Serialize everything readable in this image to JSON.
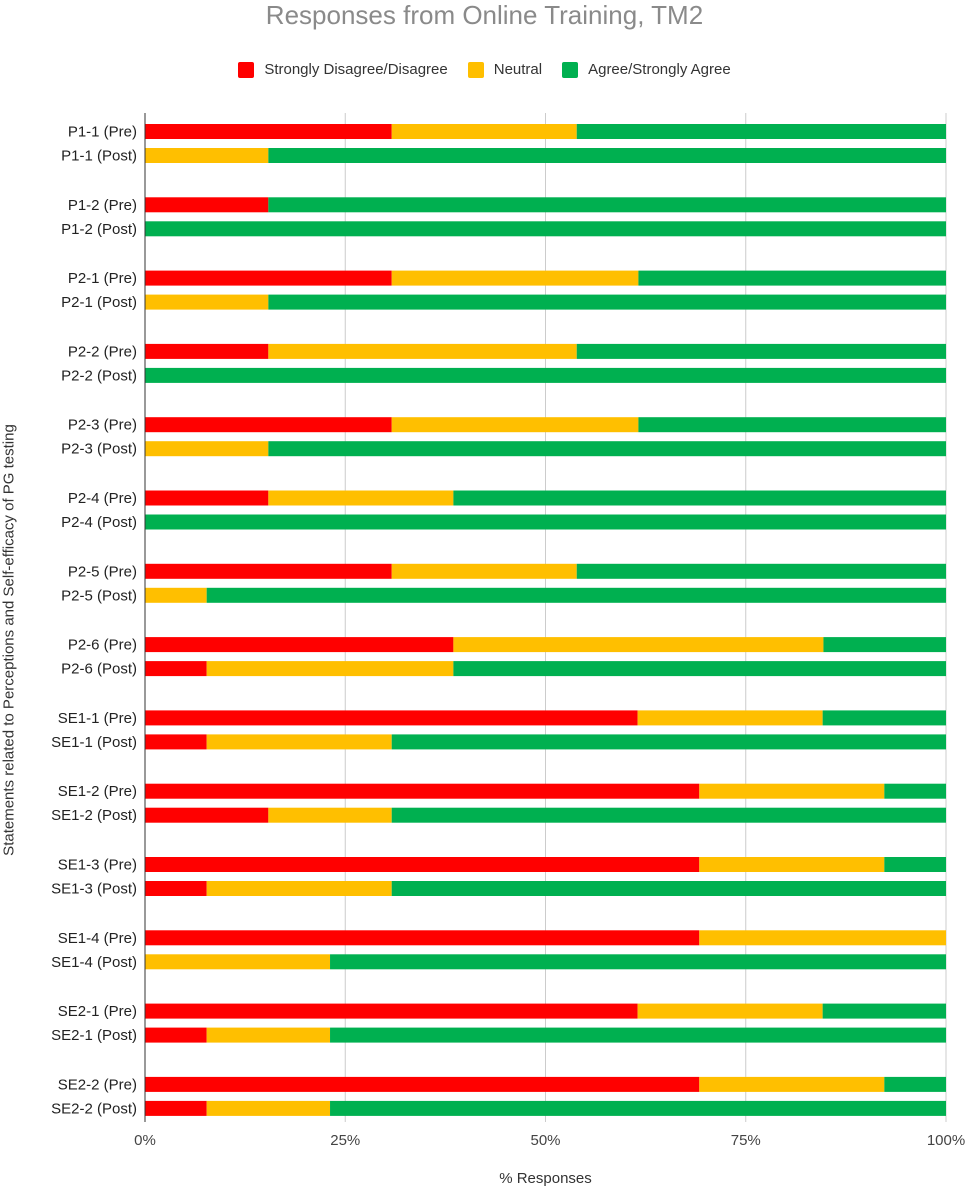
{
  "chart_data": {
    "type": "bar",
    "orientation": "horizontal",
    "stacked": true,
    "title": "Responses from Online Training, TM2",
    "xlabel": "% Responses",
    "ylabel": "Statements related to Perceptions and Self-efficacy of PG testing",
    "xlim": [
      0,
      100
    ],
    "x_ticks": [
      "0%",
      "25%",
      "50%",
      "75%",
      "100%"
    ],
    "x_tick_values": [
      0,
      25,
      50,
      75,
      100
    ],
    "grid": true,
    "legend_position": "top-center",
    "categories": [
      "P1-1 (Pre)",
      "P1-1 (Post)",
      "P1-2 (Pre)",
      "P1-2 (Post)",
      "P2-1 (Pre)",
      "P2-1 (Post)",
      "P2-2 (Pre)",
      "P2-2 (Post)",
      "P2-3 (Pre)",
      "P2-3 (Post)",
      "P2-4 (Pre)",
      "P2-4 (Post)",
      "P2-5 (Pre)",
      "P2-5 (Post)",
      "P2-6 (Pre)",
      "P2-6 (Post)",
      "SE1-1 (Pre)",
      "SE1-1 (Post)",
      "SE1-2 (Pre)",
      "SE1-2 (Post)",
      "SE1-3 (Pre)",
      "SE1-3 (Post)",
      "SE1-4 (Pre)",
      "SE1-4 (Post)",
      "SE2-1 (Pre)",
      "SE2-1 (Post)",
      "SE2-2 (Pre)",
      "SE2-2 (Post)"
    ],
    "series": [
      {
        "name": "Strongly Disagree/Disagree",
        "color": "#ff0000",
        "values": [
          30.8,
          0,
          15.4,
          0,
          30.8,
          0,
          15.4,
          0,
          30.8,
          0,
          15.4,
          0,
          30.8,
          0,
          38.5,
          7.7,
          61.5,
          7.7,
          69.2,
          15.4,
          69.2,
          7.7,
          69.2,
          0,
          61.5,
          7.7,
          69.2,
          7.7
        ]
      },
      {
        "name": "Neutral",
        "color": "#ffbf00",
        "values": [
          23.1,
          15.4,
          0,
          0,
          30.8,
          15.4,
          38.5,
          0,
          30.8,
          15.4,
          23.1,
          0,
          23.1,
          7.7,
          46.2,
          30.8,
          23.1,
          23.1,
          23.1,
          15.4,
          23.1,
          23.1,
          30.8,
          23.1,
          23.1,
          15.4,
          23.1,
          15.4
        ]
      },
      {
        "name": "Agree/Strongly Agree",
        "color": "#00b050",
        "values": [
          46.1,
          84.6,
          84.6,
          100,
          38.4,
          84.6,
          46.1,
          100,
          38.4,
          84.6,
          61.5,
          100,
          46.1,
          92.3,
          15.3,
          61.5,
          15.4,
          69.2,
          7.7,
          69.2,
          7.7,
          69.2,
          0,
          76.9,
          15.4,
          76.9,
          7.7,
          76.9
        ]
      }
    ]
  }
}
